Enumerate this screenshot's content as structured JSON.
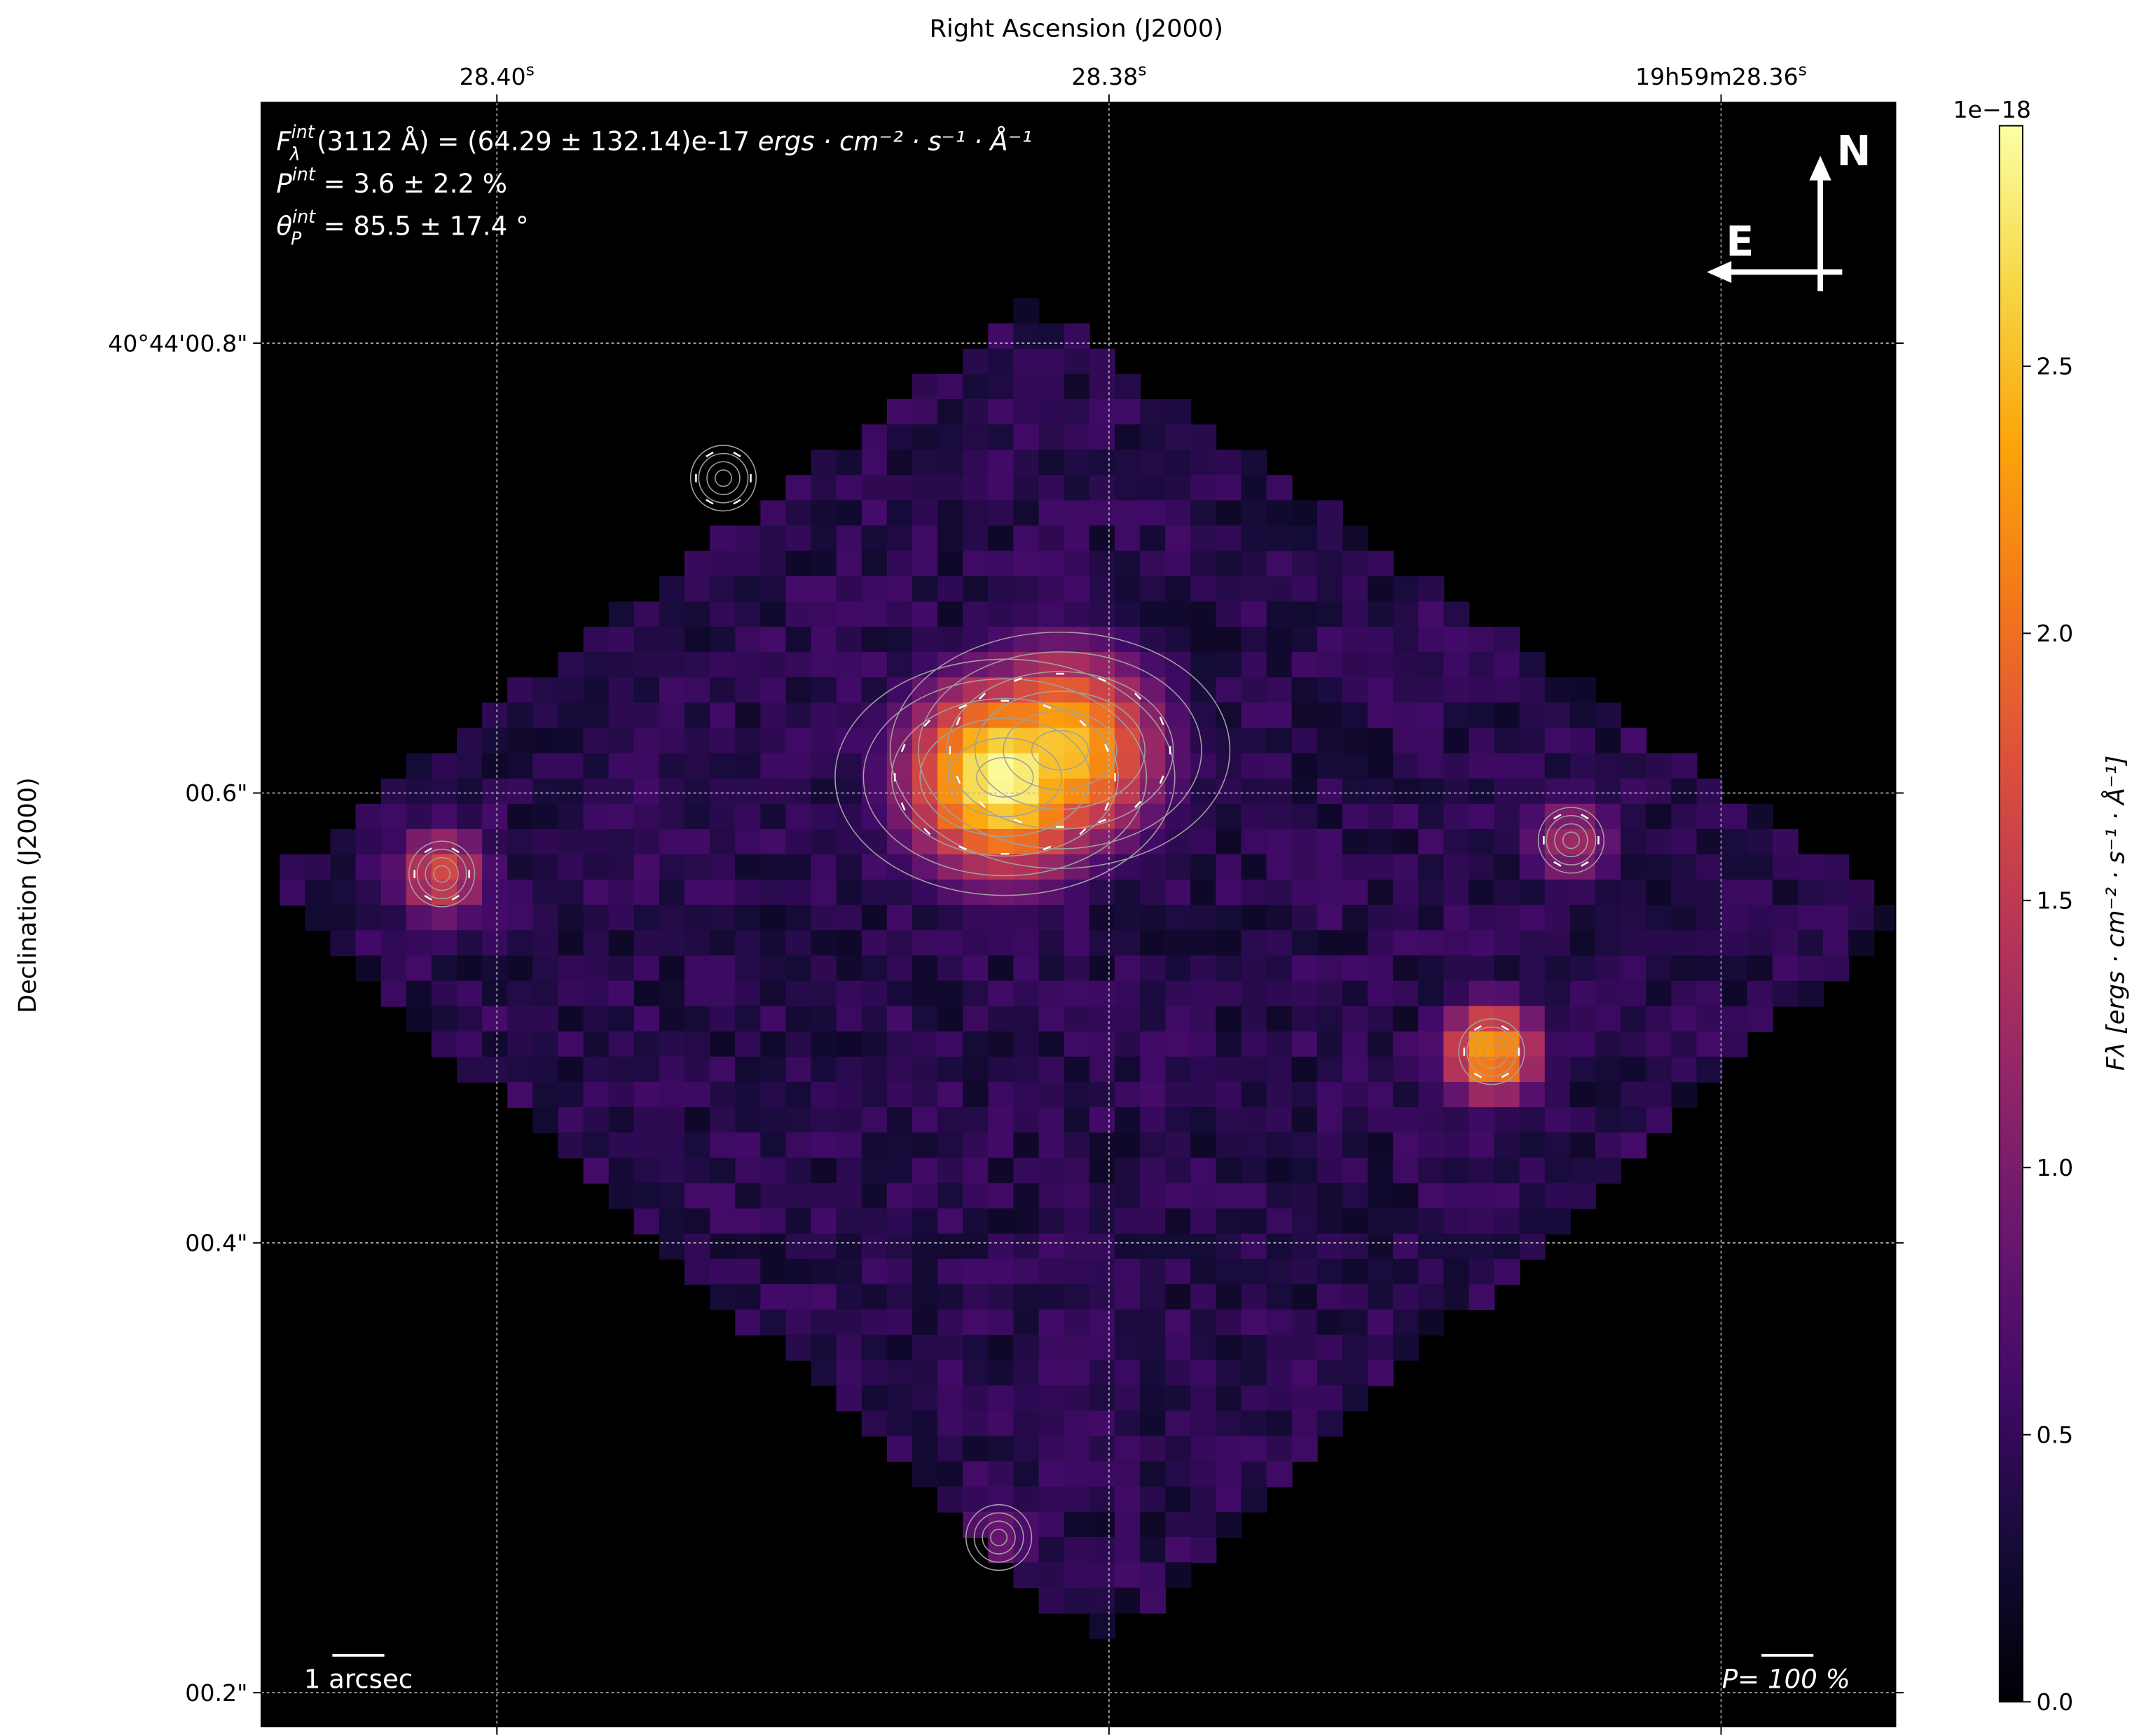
{
  "chart_data": {
    "type": "heatmap",
    "xlabel": "Right Ascension (J2000)",
    "ylabel": "Declination (J2000)",
    "x_ticks": [
      {
        "value": 28.4,
        "label": "28.40",
        "sup": "s"
      },
      {
        "value": 28.38,
        "label": "28.38",
        "sup": "s"
      },
      {
        "value": 28.36,
        "label": "19h59m28.36",
        "sup": "s",
        "parts": [
          "19",
          "h",
          "59",
          "m",
          "28.36",
          "s"
        ]
      }
    ],
    "y_ticks": [
      {
        "value": 0.8,
        "label": "40°44'00.8\""
      },
      {
        "value": 0.6,
        "label": "00.6\""
      },
      {
        "value": 0.4,
        "label": "00.4\""
      },
      {
        "value": 0.2,
        "label": "00.2\""
      }
    ],
    "xlim_ra_seconds": [
      28.4077,
      28.3543
    ],
    "ylim_dec_arcsec": [
      0.185,
      0.907
    ],
    "grid": true,
    "colormap": "inferno",
    "colorbar": {
      "label": "Fλ [ergs · cm⁻² · s⁻¹ · Å⁻¹]",
      "offset_text": "1e−18",
      "range": [
        0.0,
        2.95
      ],
      "ticks": [
        "0.0",
        "0.5",
        "1.0",
        "1.5",
        "2.0",
        "2.5"
      ],
      "tick_values": [
        0.0,
        0.5,
        1.0,
        1.5,
        2.0,
        2.5
      ]
    },
    "footprint_corners_ra_dec": [
      [
        28.3826,
        0.818
      ],
      [
        28.4076,
        0.56
      ],
      [
        28.3802,
        0.22
      ],
      [
        28.3541,
        0.548
      ]
    ],
    "diffuse_level": 0.45,
    "sources": [
      {
        "ra": 28.3834,
        "dec": 0.607,
        "peak": 2.95
      },
      {
        "ra": 28.3816,
        "dec": 0.619,
        "peak": 2.6
      },
      {
        "ra": 28.3926,
        "dec": 0.74,
        "peak": 1.9
      },
      {
        "ra": 28.4018,
        "dec": 0.564,
        "peak": 1.7
      },
      {
        "ra": 28.3675,
        "dec": 0.485,
        "peak": 2.4
      },
      {
        "ra": 28.3649,
        "dec": 0.579,
        "peak": 1.3
      },
      {
        "ra": 28.3836,
        "dec": 0.269,
        "peak": 0.9
      }
    ],
    "annotations": {
      "flux_line": "F_λ^int(3112 Å) = (64.29 ± 132.14)e-17 ergs · cm⁻² · s⁻¹ · Å⁻¹",
      "flux_main": "(3112 Å) = (64.29 ± 132.14)e-17 ",
      "flux_units": "ergs · cm⁻² · s⁻¹ · Å⁻¹",
      "pol_line": " = 3.6 ± 2.2 %",
      "angle_line": " = 85.5 ± 17.4 °",
      "sup_int": "int",
      "sub_lambda": "λ",
      "sub_p": "P",
      "F": "F",
      "P": "P",
      "theta": "θ",
      "north": "N",
      "east": "E",
      "scale_bar": "1 arcsec",
      "pol_scale": "P= 100 %"
    },
    "colors": {
      "contour": "#a0a0a0",
      "vectors": "#ffffff",
      "background": "#000000"
    }
  }
}
